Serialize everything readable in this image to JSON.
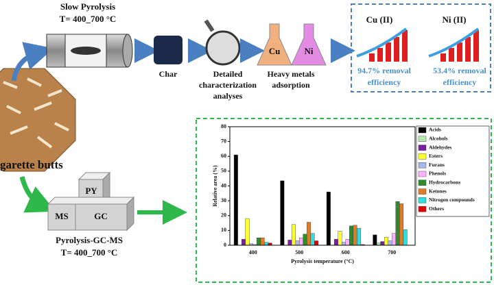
{
  "top_flow": {
    "title": "Slow Pyrolysis",
    "temperature": "T= 400_700 °C",
    "char": "Char",
    "characterization": [
      "Detailed",
      "characterization",
      "analyses"
    ],
    "flask_1": "Cu",
    "flask_2": "Ni",
    "adsorption": [
      "Heavy metals",
      "adsorption"
    ],
    "result_1": {
      "metal": "Cu (II)",
      "efficiency": [
        "94.7% removal",
        "efficiency"
      ]
    },
    "result_2": {
      "metal": "Ni (II)",
      "efficiency": [
        "53.4% removal",
        "efficiency"
      ]
    }
  },
  "feedstock": "garette butts",
  "bottom_flow": {
    "block_top": "PY",
    "block_left": "MS",
    "block_right": "GC",
    "title": "Pyrolysis-GC-MS",
    "temperature": "T= 400_700 °C"
  },
  "chart_data": {
    "type": "bar",
    "y_label": "Relative area (%)",
    "x_label": "Pyrolysis temperature (°C)",
    "categories": [
      "400",
      "500",
      "600",
      "700"
    ],
    "ylim": [
      0,
      80
    ],
    "yticks": [
      0,
      10,
      20,
      30,
      40,
      50,
      60,
      70,
      80
    ],
    "series": [
      {
        "name": "Acids",
        "color": "#000000",
        "values": [
          61,
          43.5,
          36,
          7
        ]
      },
      {
        "name": "Alcohols",
        "color": "#b8e6b0",
        "values": [
          0,
          0,
          0,
          1.5
        ]
      },
      {
        "name": "Aldehydes",
        "color": "#7b1fa2",
        "values": [
          4,
          3.5,
          4,
          2.5
        ]
      },
      {
        "name": "Esters",
        "color": "#ffff33",
        "values": [
          18,
          14,
          9.5,
          5.5
        ]
      },
      {
        "name": "Furans",
        "color": "#a8b8e8",
        "values": [
          1,
          3,
          2,
          3
        ]
      },
      {
        "name": "Phenols",
        "color": "#ffb3ff",
        "values": [
          0.5,
          5,
          4,
          8
        ]
      },
      {
        "name": "Hydrocarbons",
        "color": "#2e8b2e",
        "values": [
          5,
          7.5,
          13,
          29.5
        ]
      },
      {
        "name": "Ketones",
        "color": "#e07b28",
        "values": [
          5,
          15.5,
          13.5,
          28
        ]
      },
      {
        "name": "Nitrogen compounds",
        "color": "#33dddd",
        "values": [
          2,
          8,
          11.5,
          10.5
        ]
      },
      {
        "name": "Others",
        "color": "#e00000",
        "values": [
          1.5,
          3,
          0.5,
          0
        ]
      }
    ]
  }
}
